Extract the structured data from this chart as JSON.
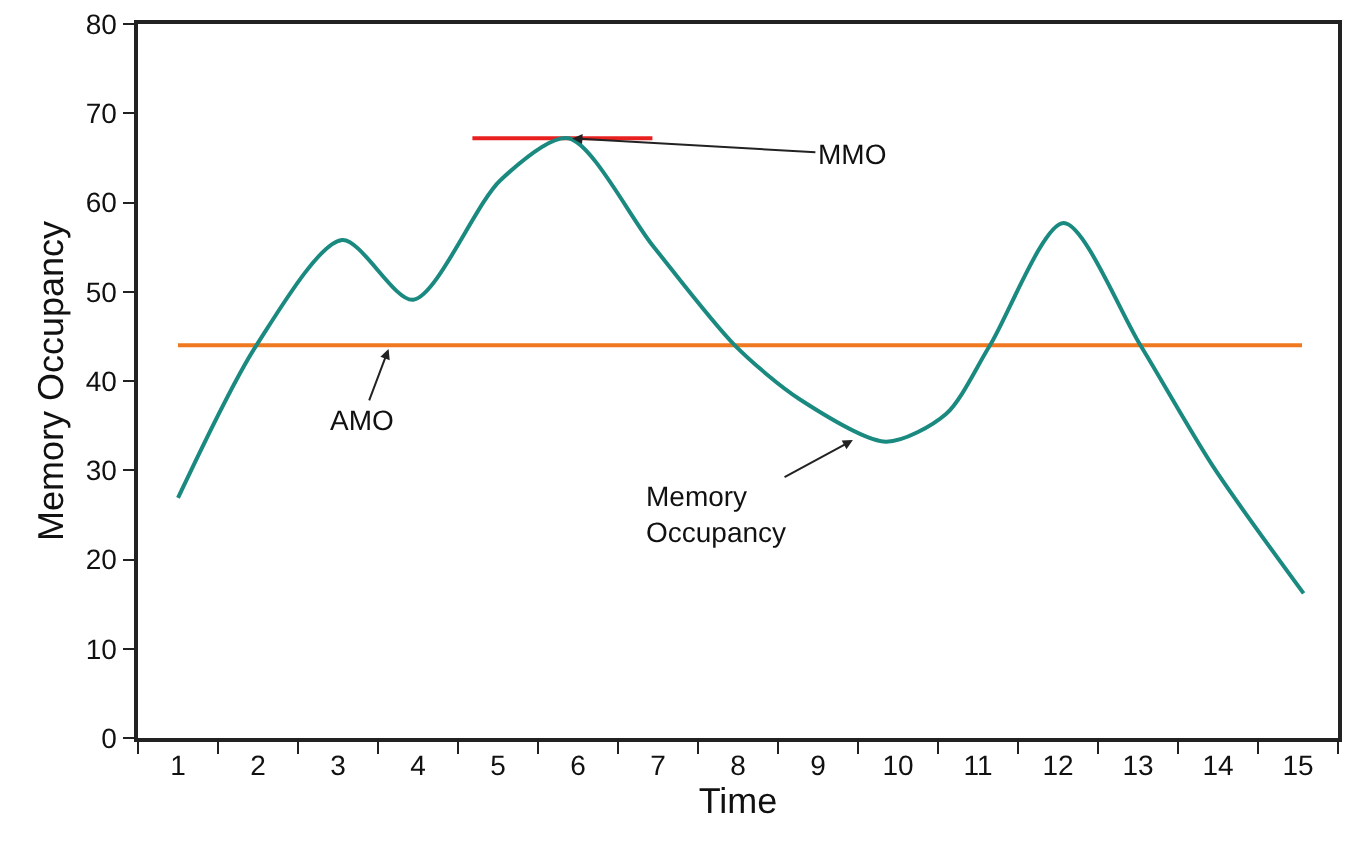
{
  "chart_data": {
    "type": "line",
    "xlabel": "Time",
    "ylabel": "Memory Occupancy",
    "xlim": [
      0.5,
      15.5
    ],
    "ylim": [
      0,
      80
    ],
    "xticks": [
      {
        "value": 0.5,
        "label": null
      },
      1,
      {
        "value": 1.5,
        "label": null
      },
      2,
      {
        "value": 2.5,
        "label": null
      },
      3,
      {
        "value": 3.5,
        "label": null
      },
      4,
      {
        "value": 4.5,
        "label": null
      },
      5,
      {
        "value": 5.5,
        "label": null
      },
      6,
      {
        "value": 6.5,
        "label": null
      },
      7,
      {
        "value": 7.5,
        "label": null
      },
      8,
      {
        "value": 8.5,
        "label": null
      },
      9,
      {
        "value": 9.5,
        "label": null
      },
      10,
      {
        "value": 10.5,
        "label": null
      },
      11,
      {
        "value": 11.5,
        "label": null
      },
      12,
      {
        "value": 12.5,
        "label": null
      },
      13,
      {
        "value": 13.5,
        "label": null
      },
      14,
      {
        "value": 14.5,
        "label": null
      },
      15,
      {
        "value": 15.5,
        "label": null
      }
    ],
    "yticks": [
      0,
      10,
      20,
      30,
      40,
      50,
      60,
      70,
      80
    ],
    "series": [
      {
        "color": "#f07820",
        "x": [
          1,
          15.05
        ],
        "values": [
          44,
          44
        ]
      },
      {
        "color": "#e82020",
        "x": [
          4.68,
          6.93
        ],
        "values": [
          67.2,
          67.2
        ]
      },
      {
        "color": "#1a8a80",
        "x": [
          1,
          1.98,
          3.05,
          3.94,
          5.03,
          5.88,
          6.94,
          7.96,
          8.78,
          9.85,
          10.6,
          11.15,
          12.07,
          13.03,
          13.94,
          15.07
        ],
        "values": [
          26.9,
          44,
          55.8,
          49.1,
          62.5,
          67.2,
          55.1,
          44,
          37.9,
          33.2,
          36.3,
          44,
          57.7,
          44,
          30.4,
          16.2
        ]
      }
    ],
    "annotations": [
      {
        "text": "MMO",
        "x": 5.88,
        "y": 67.2
      },
      {
        "text": "AMO",
        "x": 3.65,
        "y": 44
      },
      {
        "text": "Memory Occupancy",
        "x": 9.48,
        "y": 33.6
      }
    ]
  }
}
